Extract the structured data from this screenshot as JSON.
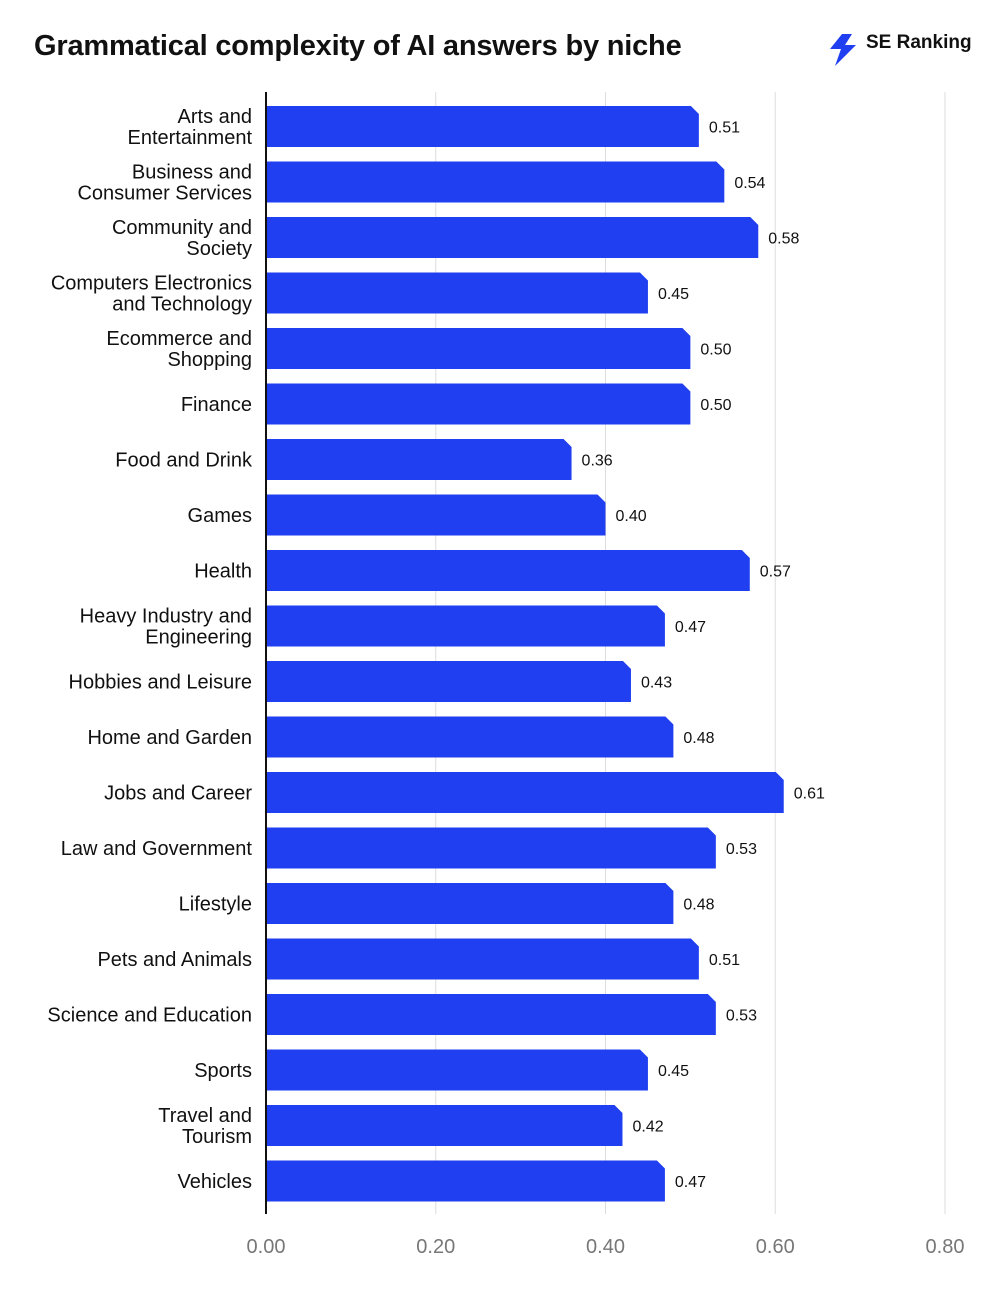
{
  "title": "Grammatical complexity of AI answers by niche",
  "brand": {
    "name": "SE Ranking",
    "icon": "lightning-bolt-icon",
    "color": "#1f3ff0"
  },
  "colors": {
    "bar": "#1f3ff0",
    "grid": "#dddddd",
    "axis": "#111111",
    "tick_label": "#777777"
  },
  "chart_data": {
    "type": "bar",
    "orientation": "horizontal",
    "categories": [
      "Arts and Entertainment",
      "Business and Consumer Services",
      "Community and Society",
      "Computers Electronics and Technology",
      "Ecommerce and Shopping",
      "Finance",
      "Food and Drink",
      "Games",
      "Health",
      "Heavy Industry and Engineering",
      "Hobbies and Leisure",
      "Home and Garden",
      "Jobs and Career",
      "Law and Government",
      "Lifestyle",
      "Pets and Animals",
      "Science and Education",
      "Sports",
      "Travel and Tourism",
      "Vehicles"
    ],
    "category_lines": [
      [
        "Arts and",
        "Entertainment"
      ],
      [
        "Business and",
        "Consumer Services"
      ],
      [
        "Community and",
        "Society"
      ],
      [
        "Computers Electronics",
        "and Technology"
      ],
      [
        "Ecommerce and",
        "Shopping"
      ],
      [
        "Finance"
      ],
      [
        "Food and Drink"
      ],
      [
        "Games"
      ],
      [
        "Health"
      ],
      [
        "Heavy Industry and",
        "Engineering"
      ],
      [
        "Hobbies and Leisure"
      ],
      [
        "Home and Garden"
      ],
      [
        "Jobs and Career"
      ],
      [
        "Law and Government"
      ],
      [
        "Lifestyle"
      ],
      [
        "Pets and Animals"
      ],
      [
        "Science and Education"
      ],
      [
        "Sports"
      ],
      [
        "Travel and",
        "Tourism"
      ],
      [
        "Vehicles"
      ]
    ],
    "values": [
      0.51,
      0.54,
      0.58,
      0.45,
      0.5,
      0.5,
      0.36,
      0.4,
      0.57,
      0.47,
      0.43,
      0.48,
      0.61,
      0.53,
      0.48,
      0.51,
      0.53,
      0.45,
      0.42,
      0.47
    ],
    "value_labels": [
      "0.51",
      "0.54",
      "0.58",
      "0.45",
      "0.50",
      "0.50",
      "0.36",
      "0.40",
      "0.57",
      "0.47",
      "0.43",
      "0.48",
      "0.61",
      "0.53",
      "0.48",
      "0.51",
      "0.53",
      "0.45",
      "0.42",
      "0.47"
    ],
    "xlim": [
      0,
      0.8
    ],
    "xticks": [
      0,
      0.2,
      0.4,
      0.6,
      0.8
    ],
    "xtick_labels": [
      "0.00",
      "0.20",
      "0.40",
      "0.60",
      "0.80"
    ],
    "xlabel": "",
    "ylabel": "",
    "grid": true,
    "legend": "none"
  }
}
